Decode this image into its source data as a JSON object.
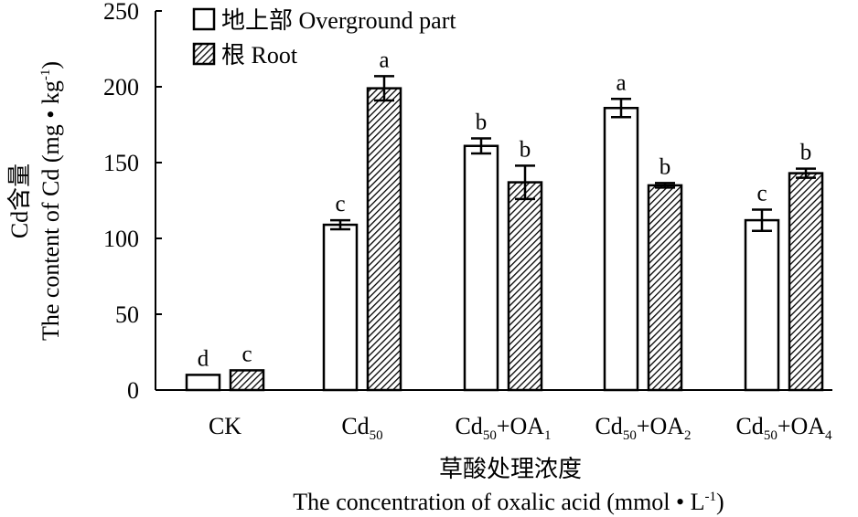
{
  "chart_data": {
    "type": "bar",
    "title": "",
    "ylabel_cn": "Cd含量",
    "ylabel_en": "The content of Cd (mg • kg",
    "ylabel_en_sup": "-1",
    "ylabel_en_close": ")",
    "xlabel_cn": "草酸处理浓度",
    "xlabel_en": "The concentration of oxalic acid (mmol • L",
    "xlabel_en_sup": "-1",
    "xlabel_en_close": ")",
    "ylim": [
      0,
      250
    ],
    "yticks": [
      0,
      50,
      100,
      150,
      200,
      250
    ],
    "grid": false,
    "legend_position": "top-left",
    "categories": [
      {
        "main": "CK",
        "sub": "",
        "suffix": "",
        "suffix_sub": ""
      },
      {
        "main": "Cd",
        "sub": "50",
        "suffix": "",
        "suffix_sub": ""
      },
      {
        "main": "Cd",
        "sub": "50",
        "suffix": "+OA",
        "suffix_sub": "1"
      },
      {
        "main": "Cd",
        "sub": "50",
        "suffix": "+OA",
        "suffix_sub": "2"
      },
      {
        "main": "Cd",
        "sub": "50",
        "suffix": "+OA",
        "suffix_sub": "4"
      }
    ],
    "series": [
      {
        "name": "地上部 Overground part",
        "pattern": "open",
        "values": [
          10,
          109,
          161,
          186,
          112
        ],
        "errors": [
          0,
          3,
          5,
          6,
          7
        ],
        "labels": [
          "d",
          "c",
          "b",
          "a",
          "c"
        ]
      },
      {
        "name": "根 Root",
        "pattern": "hatched",
        "values": [
          13,
          199,
          137,
          135,
          143
        ],
        "errors": [
          0,
          8,
          11,
          1.5,
          3
        ],
        "labels": [
          "c",
          "a",
          "b",
          "b",
          "b"
        ]
      }
    ]
  }
}
